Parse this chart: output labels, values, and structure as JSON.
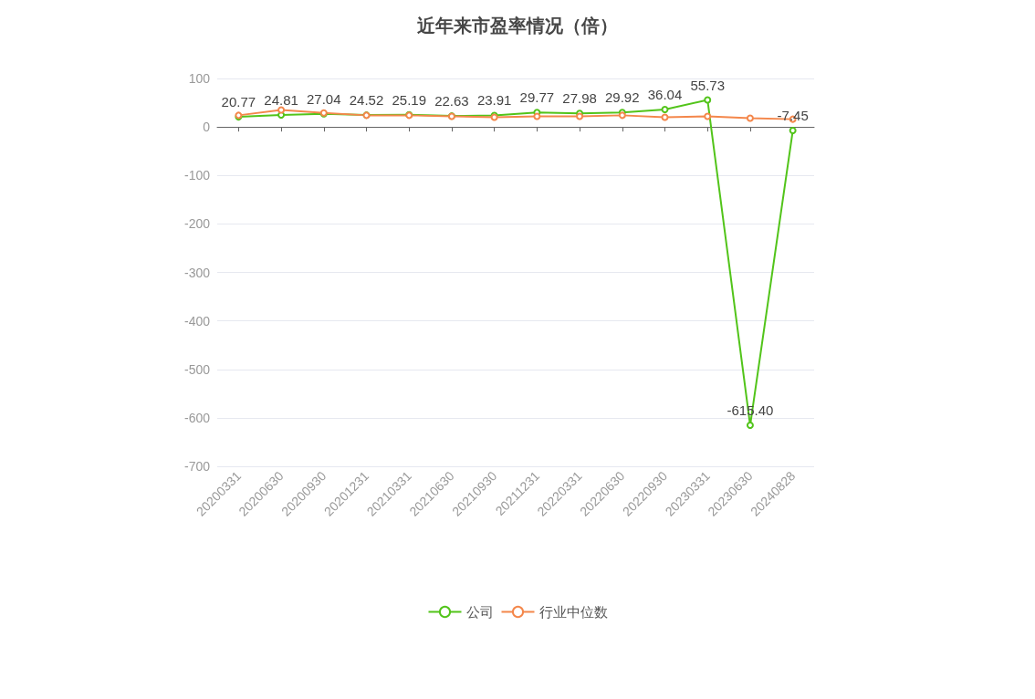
{
  "chart_data": {
    "type": "line",
    "title": "近年来市盈率情况（倍）",
    "categories": [
      "20200331",
      "20200630",
      "20200930",
      "20201231",
      "20210331",
      "20210630",
      "20210930",
      "20211231",
      "20220331",
      "20220630",
      "20220930",
      "20230331",
      "20230630",
      "20240828"
    ],
    "series": [
      {
        "name": "公司",
        "color": "#52c41a",
        "values": [
          20.77,
          24.81,
          27.04,
          24.52,
          25.19,
          22.63,
          23.91,
          29.77,
          27.98,
          29.92,
          36.04,
          55.73,
          -615.4,
          -7.45
        ],
        "value_labels": [
          "20.77",
          "24.81",
          "27.04",
          "24.52",
          "25.19",
          "22.63",
          "23.91",
          "29.77",
          "27.98",
          "29.92",
          "36.04",
          "55.73",
          "-615.40",
          "-7.45"
        ]
      },
      {
        "name": "行业中位数",
        "color": "#f4874b",
        "values": [
          24,
          35,
          29,
          24,
          24,
          22,
          20,
          22,
          22,
          24,
          20,
          22,
          18,
          16
        ]
      }
    ],
    "ylim": [
      -700,
      100
    ],
    "yticks": [
      -700,
      -600,
      -500,
      -400,
      -300,
      -200,
      -100,
      0,
      100
    ],
    "grid": "y",
    "legend": "bottom",
    "marker": "circle",
    "line_style": "solid"
  }
}
